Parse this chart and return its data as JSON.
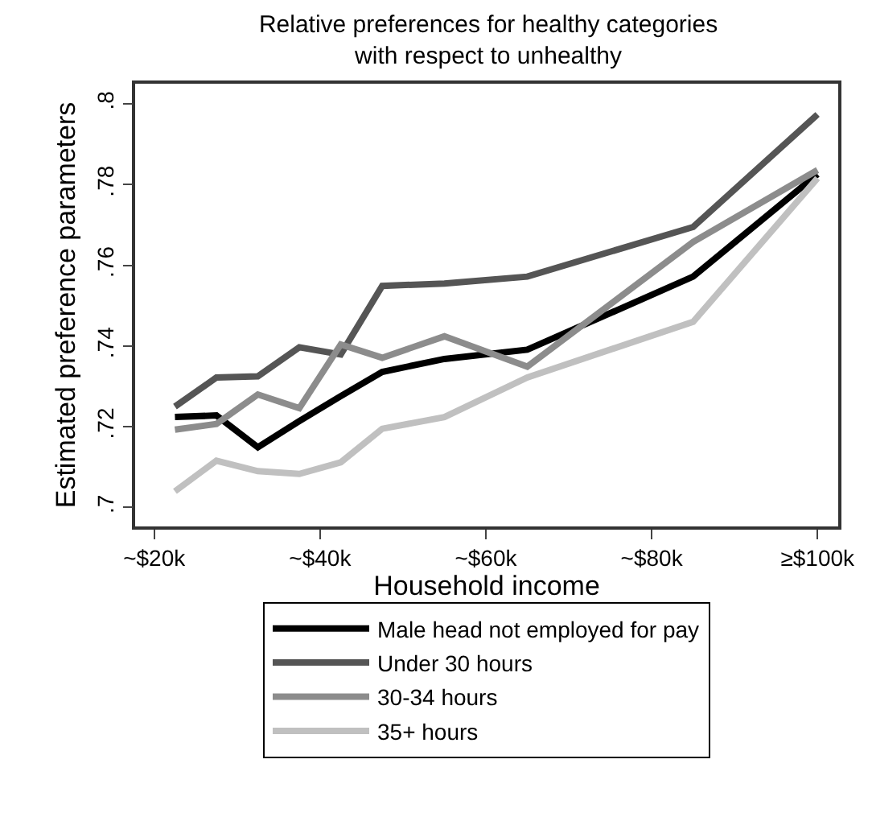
{
  "chart_data": {
    "type": "line",
    "title": "Relative preferences for healthy categories\nwith respect to unhealthy",
    "xlabel": "Household income",
    "ylabel": "Estimated preference parameters",
    "x": [
      22.5,
      27.5,
      32.5,
      37.5,
      42.5,
      47.5,
      55,
      65,
      85,
      100
    ],
    "series": [
      {
        "name": "Male head not employed for pay",
        "color": "#000000",
        "values": [
          0.7224,
          0.7228,
          0.7149,
          0.7214,
          0.7276,
          0.7336,
          0.7368,
          0.7391,
          0.7572,
          0.7826
        ]
      },
      {
        "name": "Under 30 hours",
        "color": "#555555",
        "values": [
          0.725,
          0.7322,
          0.7325,
          0.7397,
          0.7379,
          0.7549,
          0.7555,
          0.7572,
          0.7695,
          0.7974
        ]
      },
      {
        "name": "30-34 hours",
        "color": "#8c8c8c",
        "values": [
          0.7193,
          0.7207,
          0.728,
          0.7246,
          0.7404,
          0.7371,
          0.7424,
          0.7349,
          0.7658,
          0.7836
        ]
      },
      {
        "name": "35+ hours",
        "color": "#c0c0c0",
        "values": [
          0.704,
          0.7116,
          0.709,
          0.7083,
          0.7112,
          0.7195,
          0.7224,
          0.7322,
          0.746,
          0.7816
        ]
      }
    ],
    "xlim": [
      17.7,
      102.5
    ],
    "xticks": [
      {
        "value": 20,
        "label": "~$20k"
      },
      {
        "value": 40,
        "label": "~$40k"
      },
      {
        "value": 60,
        "label": "~$60k"
      },
      {
        "value": 80,
        "label": "~$80k"
      },
      {
        "value": 100,
        "label": "≥$100k"
      }
    ],
    "ylim": [
      0.6953,
      0.805
    ],
    "yticks": [
      {
        "value": 0.7,
        "label": ".7"
      },
      {
        "value": 0.72,
        "label": ".72"
      },
      {
        "value": 0.74,
        "label": ".74"
      },
      {
        "value": 0.76,
        "label": ".76"
      },
      {
        "value": 0.78,
        "label": ".78"
      },
      {
        "value": 0.8,
        "label": ".8"
      }
    ],
    "grid": false,
    "legend": "bottom",
    "marker": "none",
    "line_style": "solid"
  }
}
